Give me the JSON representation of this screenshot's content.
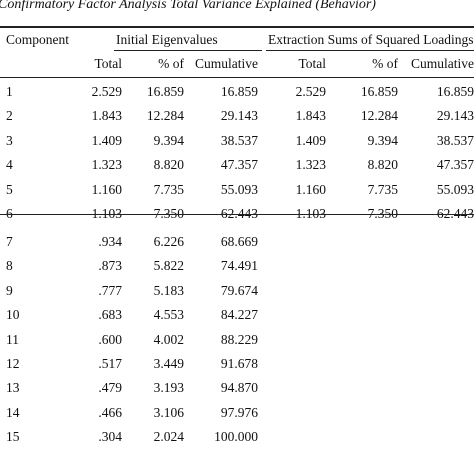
{
  "caption": "Confirmatory Factor Analysis Total Variance Explained (Behavior)",
  "header": {
    "component": "Component",
    "group_initial": "Initial Eigenvalues",
    "group_extraction": "Extraction Sums of Squared Loadings",
    "sub": [
      "Total",
      "% of",
      "Cumulative",
      "Total",
      "% of",
      "Cumulative"
    ]
  },
  "rows": [
    [
      "1",
      "2.529",
      "16.859",
      "16.859",
      "2.529",
      "16.859",
      "16.859"
    ],
    [
      "2",
      "1.843",
      "12.284",
      "29.143",
      "1.843",
      "12.284",
      "29.143"
    ],
    [
      "3",
      "1.409",
      "9.394",
      "38.537",
      "1.409",
      "9.394",
      "38.537"
    ],
    [
      "4",
      "1.323",
      "8.820",
      "47.357",
      "1.323",
      "8.820",
      "47.357"
    ],
    [
      "5",
      "1.160",
      "7.735",
      "55.093",
      "1.160",
      "7.735",
      "55.093"
    ],
    [
      "6",
      "1.103",
      "7.350",
      "62.443",
      "1.103",
      "7.350",
      "62.443"
    ],
    [
      "7",
      ".934",
      "6.226",
      "68.669",
      "",
      "",
      ""
    ],
    [
      "8",
      ".873",
      "5.822",
      "74.491",
      "",
      "",
      ""
    ],
    [
      "9",
      ".777",
      "5.183",
      "79.674",
      "",
      "",
      ""
    ],
    [
      "10",
      ".683",
      "4.553",
      "84.227",
      "",
      "",
      ""
    ],
    [
      "11",
      ".600",
      "4.002",
      "88.229",
      "",
      "",
      ""
    ],
    [
      "12",
      ".517",
      "3.449",
      "91.678",
      "",
      "",
      ""
    ],
    [
      "13",
      ".479",
      "3.193",
      "94.870",
      "",
      "",
      ""
    ],
    [
      "14",
      ".466",
      "3.106",
      "97.976",
      "",
      "",
      ""
    ],
    [
      "15",
      ".304",
      "2.024",
      "100.000",
      "",
      "",
      ""
    ]
  ]
}
